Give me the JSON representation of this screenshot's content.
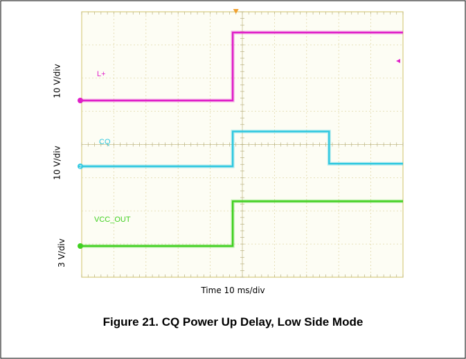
{
  "chart_data": {
    "type": "line",
    "title": "",
    "xlabel": "Time 10 ms/div",
    "x_divisions": 10,
    "y_divisions": 8,
    "grid": true,
    "ylabels": [
      "10 V/div",
      "10 V/div",
      "3 V/div"
    ],
    "series": [
      {
        "name": "L+",
        "color": "#e020c8",
        "marker": "",
        "step_div": [
          [
            0,
            0.0
          ],
          [
            4.7,
            0.0
          ],
          [
            4.7,
            2.05
          ],
          [
            10,
            2.05
          ]
        ]
      },
      {
        "name": "CQ",
        "color": "#30c8e0",
        "marker": "2",
        "step_div": [
          [
            0,
            0.0
          ],
          [
            4.7,
            0.0
          ],
          [
            4.7,
            1.05
          ],
          [
            7.7,
            1.05
          ],
          [
            7.7,
            0.08
          ],
          [
            10,
            0.08
          ]
        ]
      },
      {
        "name": "VCC_OUT",
        "color": "#40d020",
        "marker": "",
        "step_div": [
          [
            0,
            0.0
          ],
          [
            4.7,
            0.0
          ],
          [
            4.7,
            1.35
          ],
          [
            10,
            1.35
          ]
        ]
      }
    ]
  },
  "caption": "Figure 21. CQ Power Up Delay, Low Side Mode"
}
